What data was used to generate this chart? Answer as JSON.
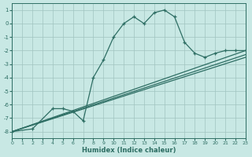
{
  "xlabel": "Humidex (Indice chaleur)",
  "bg_color": "#c8e8e4",
  "line_color": "#2e6e64",
  "grid_color": "#a0c4c0",
  "xlim": [
    0,
    23
  ],
  "ylim": [
    -8.5,
    1.5
  ],
  "yticks": [
    1,
    0,
    -1,
    -2,
    -3,
    -4,
    -5,
    -6,
    -7,
    -8
  ],
  "xticks": [
    0,
    1,
    2,
    3,
    4,
    5,
    6,
    7,
    8,
    9,
    10,
    11,
    12,
    13,
    14,
    15,
    16,
    17,
    18,
    19,
    20,
    21,
    22,
    23
  ],
  "curve1_x": [
    0,
    2,
    4,
    5,
    6,
    7,
    8,
    9,
    10,
    11,
    12,
    13,
    14,
    15,
    16,
    17,
    18,
    19,
    20,
    21,
    22,
    23
  ],
  "curve1_y": [
    -8.0,
    -7.8,
    -6.3,
    -6.3,
    -6.5,
    -7.2,
    -4.0,
    -2.7,
    -1.0,
    0.0,
    0.5,
    0.0,
    0.8,
    1.0,
    0.5,
    -1.4,
    -2.2,
    -2.5,
    -2.2,
    -2.0,
    -2.0,
    -2.0
  ],
  "line1_x": [
    0,
    23
  ],
  "line1_y": [
    -8.0,
    -2.0
  ],
  "line2_x": [
    0,
    23
  ],
  "line2_y": [
    -8.0,
    -2.3
  ],
  "line3_x": [
    0,
    23
  ],
  "line3_y": [
    -8.0,
    -2.5
  ]
}
